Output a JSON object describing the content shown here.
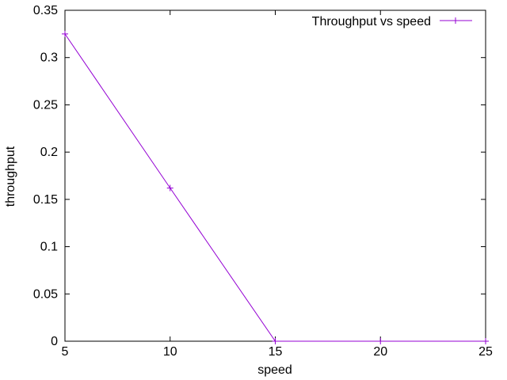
{
  "chart_data": {
    "type": "line",
    "title": "",
    "xlabel": "speed",
    "ylabel": "throughput",
    "xlim": [
      5,
      25
    ],
    "ylim": [
      0,
      0.35
    ],
    "xticks": [
      5,
      10,
      15,
      20,
      25
    ],
    "xtick_labels": [
      "5",
      "10",
      "15",
      "20",
      "25"
    ],
    "yticks": [
      0,
      0.05,
      0.1,
      0.15,
      0.2,
      0.25,
      0.3,
      0.35
    ],
    "ytick_labels": [
      "0",
      "0.05",
      "0.1",
      "0.15",
      "0.2",
      "0.25",
      "0.3",
      "0.35"
    ],
    "grid": false,
    "legend_position": "top-right",
    "series": [
      {
        "name": "Throughput vs speed",
        "color": "#9400d3",
        "marker": "plus",
        "x": [
          5,
          10,
          15,
          20,
          25
        ],
        "y": [
          0.325,
          0.162,
          0,
          0,
          0
        ]
      }
    ]
  }
}
